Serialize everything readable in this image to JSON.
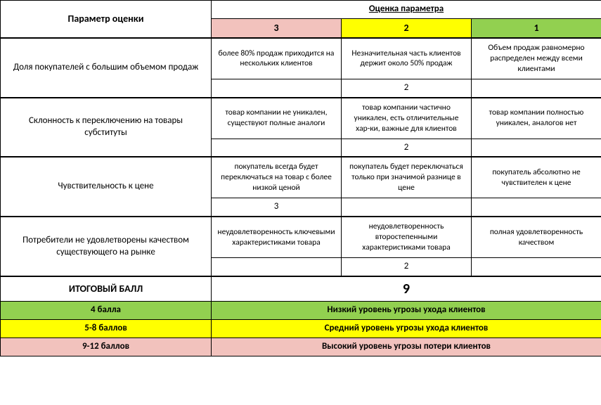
{
  "header": {
    "title": "Оценка параметра",
    "param_label": "Параметр оценки",
    "col3": "3",
    "col2": "2",
    "col1": "1"
  },
  "rows": [
    {
      "param": "Доля покупателей с большим объемом продаж",
      "c3": "более 80% продаж приходится на нескольких клиентов",
      "c2": "Незначительная часть клиентов держит около 50% продаж",
      "c1": "Объем продаж равномерно распределен между всеми клиентами",
      "score": "2",
      "score_col": 2
    },
    {
      "param": "Склонность к переключению на товары субституты",
      "c3": "товар компании не уникален, существуют полные аналоги",
      "c2": "товар компании частично уникален, есть отличительные хар-ки, важные для клиентов",
      "c1": "товар компании полностью уникален, аналогов нет",
      "score": "2",
      "score_col": 2
    },
    {
      "param": "Чувствительность к цене",
      "c3": "покупатель всегда будет переключаться на товар с более низкой ценой",
      "c2": "покупатель будет переключаться только при значимой разнице в цене",
      "c1": "покупатель абсолютно не чувствителен к цене",
      "score": "3",
      "score_col": 3
    },
    {
      "param": "Потребители не удовлетворены качеством существующего на рынке",
      "c3": "неудовлетворенность ключевыми характеристиками товара",
      "c2": "неудовлетворенность второстепенными характеристиками товара",
      "c1": "полная удовлетворенность качеством",
      "score": "2",
      "score_col": 2
    }
  ],
  "total": {
    "label": "ИТОГОВЫЙ БАЛЛ",
    "value": "9"
  },
  "legend": [
    {
      "range": "4 балла",
      "text": "Низкий уровень угрозы ухода клиентов",
      "cls": "legend-green"
    },
    {
      "range": "5-8 баллов",
      "text": "Средний уровень угрозы ухода клиентов",
      "cls": "legend-yellow"
    },
    {
      "range": "9-12 баллов",
      "text": "Высокий уровень угрозы потери клиентов",
      "cls": "legend-pink"
    }
  ],
  "colors": {
    "pink": "#f2c2bd",
    "yellow": "#ffff00",
    "green": "#92d050",
    "border": "#000000",
    "bg": "#ffffff"
  }
}
